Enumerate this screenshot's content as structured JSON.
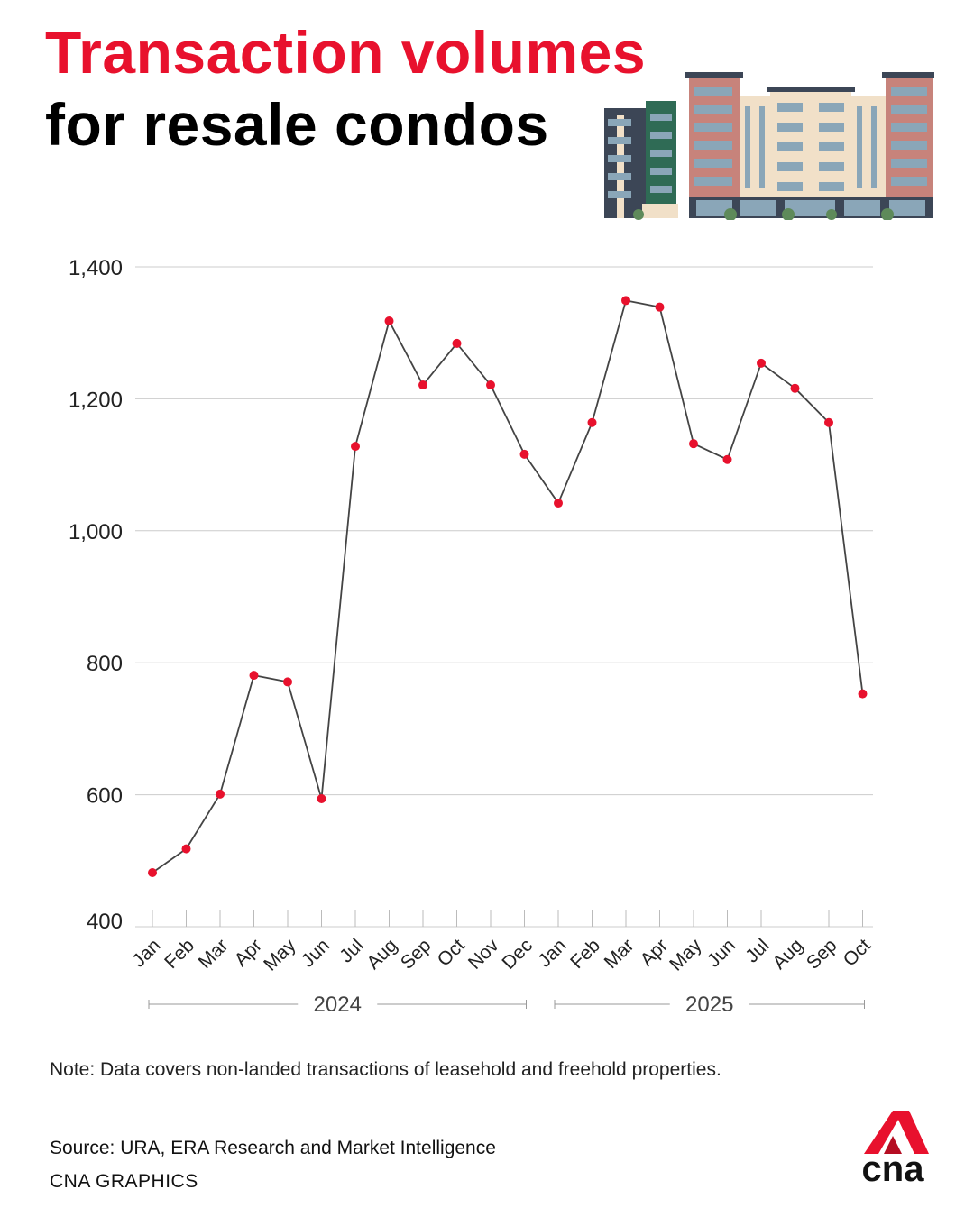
{
  "header": {
    "title_line1": "Transaction volumes",
    "title_line2": "for resale condos",
    "illustration_icon": "condo-buildings-icon"
  },
  "chart_data": {
    "type": "line",
    "title": "Transaction volumes for resale condos",
    "xlabel": "",
    "ylabel": "",
    "ylim": [
      400,
      1400
    ],
    "yticks": [
      400,
      600,
      800,
      1000,
      1200,
      1400
    ],
    "ytick_labels": [
      "400",
      "600",
      "800",
      "1,000",
      "1,200",
      "1,400"
    ],
    "grid": "horizontal",
    "categories": [
      "Jan",
      "Feb",
      "Mar",
      "Apr",
      "May",
      "Jun",
      "Jul",
      "Aug",
      "Sep",
      "Oct",
      "Nov",
      "Dec",
      "Jan",
      "Feb",
      "Mar",
      "Apr",
      "May",
      "Jun",
      "Jul",
      "Aug",
      "Sep",
      "Oct"
    ],
    "years": [
      {
        "label": "2024",
        "start": 0,
        "end": 11
      },
      {
        "label": "2025",
        "start": 12,
        "end": 21
      }
    ],
    "series": [
      {
        "values": [
          482,
          518,
          601,
          781,
          771,
          594,
          1128,
          1318,
          1221,
          1284,
          1221,
          1116,
          1042,
          1164,
          1349,
          1339,
          1132,
          1108,
          1254,
          1216,
          1164,
          753
        ],
        "line_color": "#444444",
        "marker_color": "#e8112d"
      }
    ]
  },
  "footer": {
    "note": "Note: Data covers non-landed transactions of leasehold and freehold properties.",
    "source": "Source: URA, ERA Research and Market Intelligence",
    "credit": "CNA GRAPHICS",
    "logo_text": "cna",
    "logo_icon": "cna-logo-icon"
  },
  "colors": {
    "accent": "#e8112d",
    "text": "#111111",
    "grid": "#cccccc",
    "line": "#444444"
  }
}
